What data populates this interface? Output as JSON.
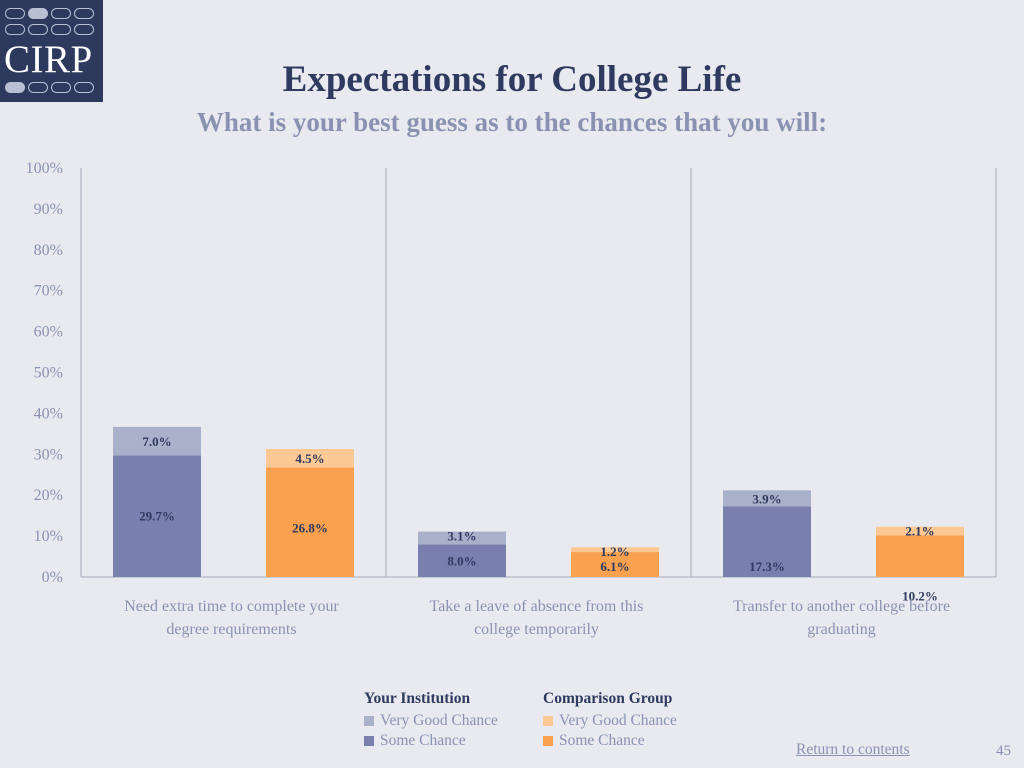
{
  "logo": {
    "text": "CIRP"
  },
  "header": {
    "title": "Expectations for College Life",
    "subtitle": "What is your best guess as to the chances that you will:"
  },
  "colors": {
    "inst_some": "#7a80ad",
    "inst_very_good": "#a9b0ca",
    "comp_some": "#f9a14f",
    "comp_very_good": "#fcc995",
    "axis_text": "#8a92b2",
    "label_text": "#2e3a5f",
    "divider": "#a7abb9"
  },
  "chart_data": {
    "type": "bar",
    "stacked": true,
    "ylim": [
      0,
      100
    ],
    "y_ticks": [
      "0%",
      "10%",
      "20%",
      "30%",
      "40%",
      "50%",
      "60%",
      "70%",
      "80%",
      "90%",
      "100%"
    ],
    "categories": [
      [
        "Need extra time to complete your",
        "degree requirements"
      ],
      [
        "Take a leave of absence from this",
        "college temporarily"
      ],
      [
        "Transfer to another college before",
        "graduating"
      ]
    ],
    "groups": [
      {
        "name": "Your Institution",
        "series": [
          {
            "name": "Some Chance",
            "values": [
              29.7,
              8.0,
              17.3
            ],
            "labels": [
              "29.7%",
              "8.0%",
              "17.3%"
            ]
          },
          {
            "name": "Very Good Chance",
            "values": [
              7.0,
              3.1,
              3.9
            ],
            "labels": [
              "7.0%",
              "3.1%",
              "3.9%"
            ]
          }
        ]
      },
      {
        "name": "Comparison Group",
        "series": [
          {
            "name": "Some Chance",
            "values": [
              26.8,
              6.1,
              10.2
            ],
            "labels": [
              "26.8%",
              "6.1%",
              "10.2%"
            ]
          },
          {
            "name": "Very Good Chance",
            "values": [
              4.5,
              1.2,
              2.1
            ],
            "labels": [
              "4.5%",
              "1.2%",
              "2.1%"
            ]
          }
        ]
      }
    ],
    "legend": {
      "placement": "bottom",
      "columns": [
        {
          "title": "Your Institution",
          "items": [
            "Very Good Chance",
            "Some Chance"
          ]
        },
        {
          "title": "Comparison Group",
          "items": [
            "Very Good Chance",
            "Some Chance"
          ]
        }
      ]
    }
  },
  "footer": {
    "return_link": "Return to contents",
    "page_number": "45"
  }
}
